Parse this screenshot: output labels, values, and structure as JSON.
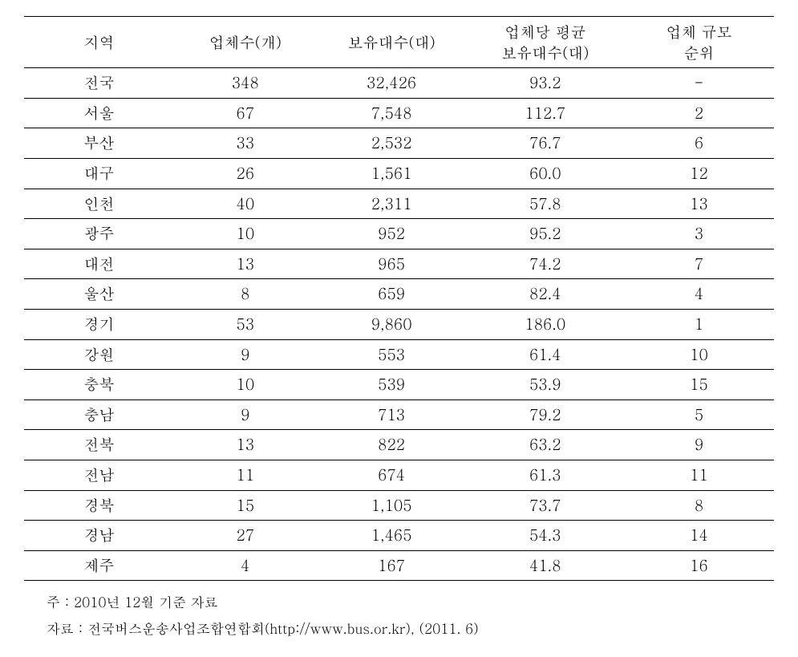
{
  "table": {
    "columns": [
      "지역",
      "업체수(개)",
      "보유대수(대)",
      "업체당 평균\n보유대수(대)",
      "업체 규모\n순위"
    ],
    "rows": [
      [
        "전국",
        "348",
        "32,426",
        "93.2",
        "-"
      ],
      [
        "서울",
        "67",
        "7,548",
        "112.7",
        "2"
      ],
      [
        "부산",
        "33",
        "2,532",
        "76.7",
        "6"
      ],
      [
        "대구",
        "26",
        "1,561",
        "60.0",
        "12"
      ],
      [
        "인천",
        "40",
        "2,311",
        "57.8",
        "13"
      ],
      [
        "광주",
        "10",
        "952",
        "95.2",
        "3"
      ],
      [
        "대전",
        "13",
        "965",
        "74.2",
        "7"
      ],
      [
        "울산",
        "8",
        "659",
        "82.4",
        "4"
      ],
      [
        "경기",
        "53",
        "9,860",
        "186.0",
        "1"
      ],
      [
        "강원",
        "9",
        "553",
        "61.4",
        "10"
      ],
      [
        "충북",
        "10",
        "539",
        "53.9",
        "15"
      ],
      [
        "충남",
        "9",
        "713",
        "79.2",
        "5"
      ],
      [
        "전북",
        "13",
        "822",
        "63.2",
        "9"
      ],
      [
        "전남",
        "11",
        "674",
        "61.3",
        "11"
      ],
      [
        "경북",
        "15",
        "1,105",
        "73.7",
        "8"
      ],
      [
        "경남",
        "27",
        "1,465",
        "54.3",
        "14"
      ],
      [
        "제주",
        "4",
        "167",
        "41.8",
        "16"
      ]
    ]
  },
  "footnotes": {
    "note": "주 : 2010년 12월 기준 자료",
    "source": "자료 : 전국버스운송사업조합연합회(http://www.bus.or.kr), (2011. 6)"
  },
  "style": {
    "background_color": "#ffffff",
    "text_color": "#000000",
    "border_color": "#000000",
    "header_border_width": 1.5,
    "row_border_width": 1,
    "font_size_table": 19,
    "font_size_footnote": 17,
    "cell_padding_v": 5,
    "col_widths_pct": [
      20,
      19,
      20,
      21,
      20
    ]
  }
}
